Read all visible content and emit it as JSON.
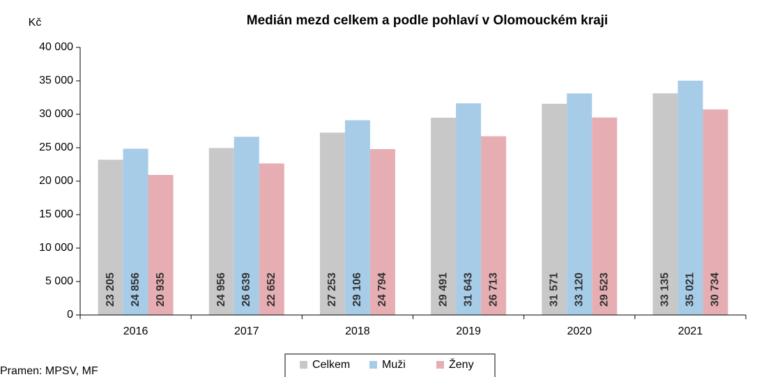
{
  "chart_data": {
    "type": "bar",
    "title": "Medián mezd celkem a podle pohlaví v Olomouckém kraji",
    "y_label": "Kč",
    "source": "Pramen: MPSV, MF",
    "categories": [
      "2016",
      "2017",
      "2018",
      "2019",
      "2020",
      "2021"
    ],
    "series": [
      {
        "name": "Celkem",
        "color": "#c8c8c8",
        "values": [
          23205,
          24956,
          27253,
          29491,
          31571,
          33135
        ],
        "value_labels": [
          "23 205",
          "24 956",
          "27 253",
          "29 491",
          "31 571",
          "33 135"
        ]
      },
      {
        "name": "Muži",
        "color": "#a6cce8",
        "values": [
          24856,
          26639,
          29106,
          31643,
          33120,
          35021
        ],
        "value_labels": [
          "24 856",
          "26 639",
          "29 106",
          "31 643",
          "33 120",
          "35 021"
        ]
      },
      {
        "name": "Ženy",
        "color": "#e6aeb2",
        "values": [
          20935,
          22652,
          24794,
          26713,
          29523,
          30734
        ],
        "value_labels": [
          "20 935",
          "22 652",
          "24 794",
          "26 713",
          "29 523",
          "30 734"
        ]
      }
    ],
    "ylim": [
      0,
      40000
    ],
    "yticks": [
      0,
      {
        "value": 5000,
        "label": "5 000"
      },
      {
        "value": 10000,
        "label": "10 000"
      },
      {
        "value": 15000,
        "label": "15 000"
      },
      {
        "value": 20000,
        "label": "20 000"
      },
      {
        "value": 25000,
        "label": "25 000"
      },
      {
        "value": 30000,
        "label": "30 000"
      },
      {
        "value": 35000,
        "label": "35 000"
      },
      {
        "value": 40000,
        "label": "40 000"
      }
    ],
    "grid": false,
    "legend": "bottom"
  }
}
